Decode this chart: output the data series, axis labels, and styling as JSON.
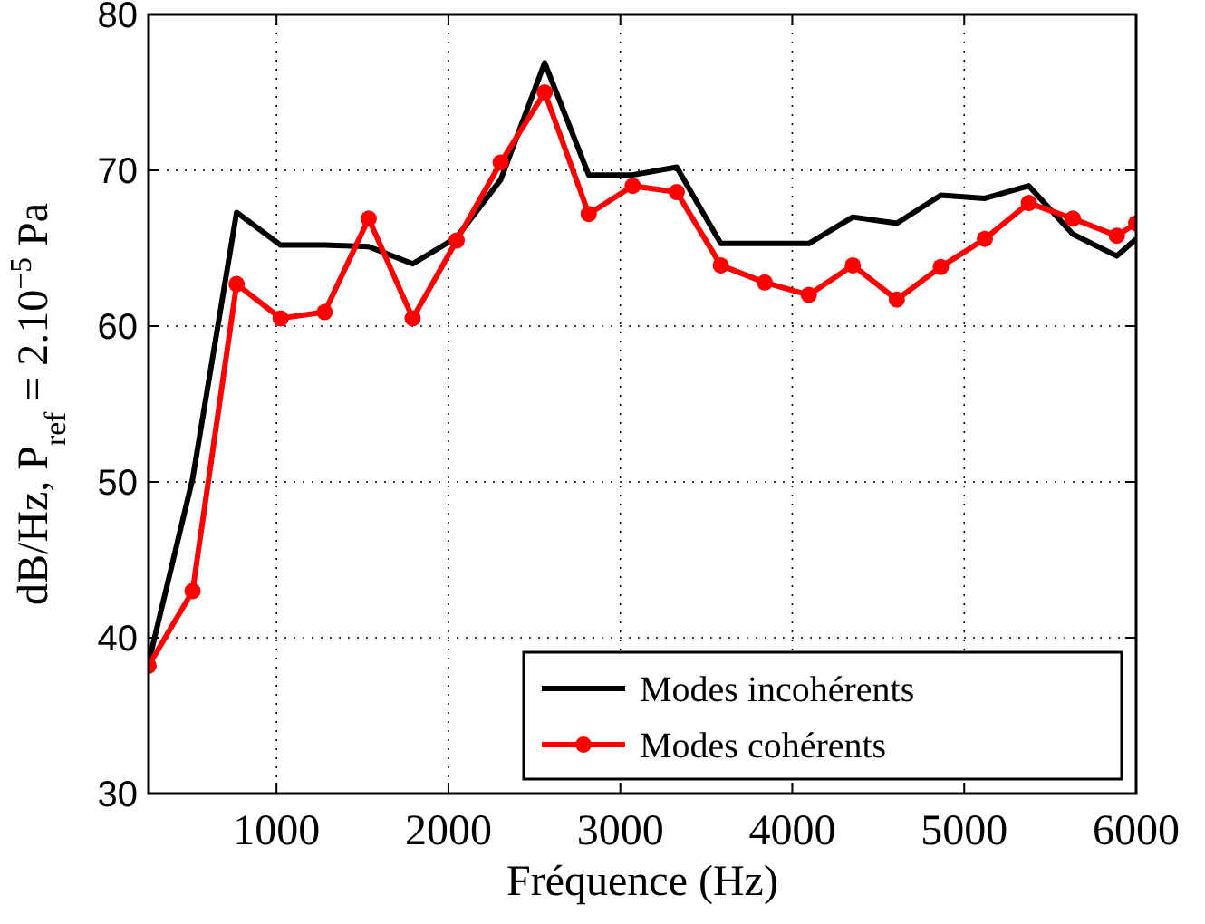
{
  "chart_data": {
    "type": "line",
    "xlabel": "Fréquence (Hz)",
    "ylabel": "dB/Hz,  P$_{ref}$ = 2.10$^{−5}$ Pa",
    "xlim": [
      256,
      6000
    ],
    "xticks": [
      1000,
      2000,
      3000,
      4000,
      5000,
      6000
    ],
    "ylim": [
      30,
      80
    ],
    "yticks": [
      30,
      40,
      50,
      60,
      70,
      80
    ],
    "grid": true,
    "legend": "bottom right",
    "line_style": "solid",
    "x": [
      256,
      512,
      768,
      1024,
      1280,
      1536,
      1792,
      2048,
      2304,
      2560,
      2816,
      3072,
      3328,
      3584,
      3840,
      4096,
      4352,
      4608,
      4864,
      5120,
      5376,
      5632,
      5888,
      6000
    ],
    "series": [
      {
        "name": "Modes incohérents",
        "color": "#000000",
        "marker": "none",
        "values": [
          38.4,
          50.2,
          67.3,
          65.2,
          65.2,
          65.1,
          64.0,
          65.7,
          69.4,
          76.9,
          69.7,
          69.7,
          70.2,
          65.3,
          65.3,
          65.3,
          67.0,
          66.6,
          68.4,
          68.2,
          69.0,
          65.9,
          64.5,
          65.6
        ]
      },
      {
        "name": "Modes cohérents",
        "color": "#ff0000",
        "marker": "circle",
        "values": [
          38.2,
          43.0,
          62.7,
          60.5,
          60.9,
          66.9,
          60.5,
          65.5,
          70.5,
          75.0,
          67.2,
          69.0,
          68.6,
          63.9,
          62.8,
          62.0,
          63.9,
          61.7,
          63.8,
          65.6,
          67.9,
          66.9,
          65.8,
          66.6
        ]
      }
    ]
  }
}
